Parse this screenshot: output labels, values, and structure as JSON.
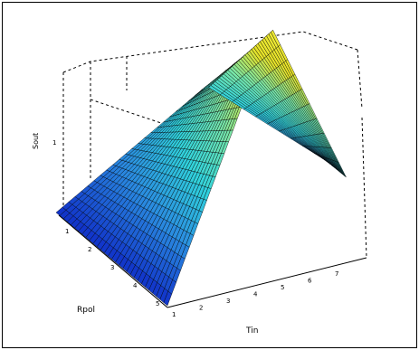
{
  "chart_data": {
    "type": "surface",
    "title": "",
    "xlabel": "Tin",
    "ylabel": "Rpol",
    "zlabel": "Sout",
    "z_tick_labels": [
      "1"
    ],
    "x_tick_labels": [
      "1",
      "2",
      "3",
      "4",
      "5",
      "6",
      "7"
    ],
    "y_tick_labels": [
      "1",
      "2",
      "3",
      "4",
      "5"
    ],
    "grid": true,
    "colormap": [
      "#1030c8",
      "#2a8ae0",
      "#30d2dc",
      "#78e6a8",
      "#e6e228",
      "#f0ec3a"
    ],
    "surface_description_values": {
      "z_min": 0,
      "z_max": 1,
      "shape": "ridge"
    }
  }
}
